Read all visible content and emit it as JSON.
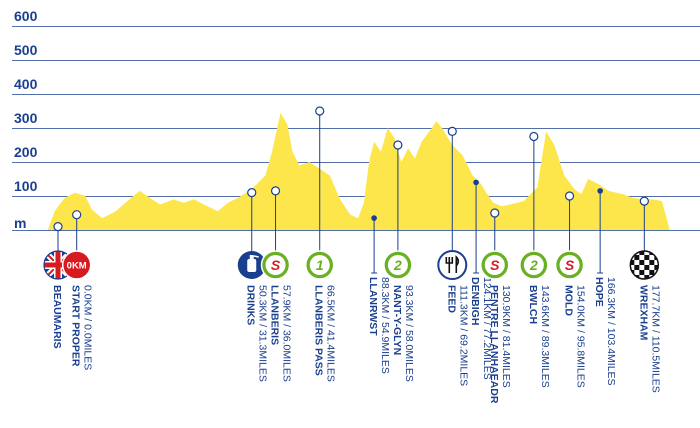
{
  "chart_data": {
    "type": "area",
    "ylabel": "m",
    "y_ticks": [
      100,
      200,
      300,
      400,
      500,
      600
    ],
    "x_range_km": [
      0,
      177.7
    ],
    "y_range_m": [
      0,
      600
    ],
    "colors": {
      "profile": "#fce64c",
      "text": "#1a3f8f",
      "grid": "#1a3f8f",
      "red": "#d71920",
      "green": "#6ab023",
      "navy": "#1a3f8f"
    },
    "profile": [
      [
        -3,
        0
      ],
      [
        -1,
        55
      ],
      [
        2,
        95
      ],
      [
        5,
        110
      ],
      [
        8,
        100
      ],
      [
        10,
        60
      ],
      [
        13,
        35
      ],
      [
        17,
        55
      ],
      [
        21,
        90
      ],
      [
        24,
        115
      ],
      [
        27,
        95
      ],
      [
        30,
        75
      ],
      [
        34,
        90
      ],
      [
        37,
        80
      ],
      [
        40,
        90
      ],
      [
        44,
        70
      ],
      [
        47,
        55
      ],
      [
        50,
        80
      ],
      [
        53,
        95
      ],
      [
        57,
        120
      ],
      [
        59,
        140
      ],
      [
        61,
        160
      ],
      [
        63,
        230
      ],
      [
        64.5,
        300
      ],
      [
        65.5,
        345
      ],
      [
        67.5,
        310
      ],
      [
        69,
        230
      ],
      [
        71,
        190
      ],
      [
        74,
        200
      ],
      [
        77,
        180
      ],
      [
        80,
        160
      ],
      [
        83,
        90
      ],
      [
        86,
        45
      ],
      [
        88.3,
        35
      ],
      [
        90,
        80
      ],
      [
        91.5,
        200
      ],
      [
        93,
        260
      ],
      [
        95,
        230
      ],
      [
        97,
        300
      ],
      [
        99,
        270
      ],
      [
        101,
        200
      ],
      [
        103,
        240
      ],
      [
        105,
        210
      ],
      [
        107,
        260
      ],
      [
        110,
        300
      ],
      [
        111.3,
        320
      ],
      [
        113,
        300
      ],
      [
        116,
        250
      ],
      [
        119,
        220
      ],
      [
        122,
        160
      ],
      [
        124.1,
        140
      ],
      [
        126,
        110
      ],
      [
        128,
        80
      ],
      [
        130.5,
        70
      ],
      [
        133,
        75
      ],
      [
        137,
        85
      ],
      [
        141,
        125
      ],
      [
        143.6,
        290
      ],
      [
        146,
        250
      ],
      [
        149,
        160
      ],
      [
        152,
        120
      ],
      [
        154,
        105
      ],
      [
        156,
        150
      ],
      [
        159,
        135
      ],
      [
        162,
        115
      ],
      [
        166.3,
        105
      ],
      [
        169,
        95
      ],
      [
        172,
        90
      ],
      [
        175,
        90
      ],
      [
        177.7,
        85
      ],
      [
        180,
        0
      ]
    ],
    "stations": [
      {
        "name": "BEAUMARIS",
        "distance": "",
        "km": 0,
        "icon": "uk-flag-icon",
        "badge": "",
        "marker_m": 10
      },
      {
        "name": "START PROPER",
        "distance": "0.0KM / 0.0MILES",
        "km": 5.5,
        "icon": "start-badge-icon",
        "badge": "0KM",
        "marker_m": 45
      },
      {
        "name": "DRINKS",
        "distance": "50.3KM / 31.3MILES",
        "km": 57,
        "icon": "drinks-bottle-icon",
        "badge": "",
        "marker_m": 110
      },
      {
        "name": "LLANBERIS",
        "distance": "57.9KM / 36.0MILES",
        "km": 64,
        "icon": "sprint-s-icon",
        "badge": "S",
        "marker_m": 115
      },
      {
        "name": "LLANBERIS PASS",
        "distance": "66.5KM / 41.4MILES",
        "km": 77,
        "icon": "climb-1-icon",
        "badge": "1",
        "marker_m": 350
      },
      {
        "name": "LLANRWST",
        "distance": "88.3KM / 54.9MILES",
        "km": 93,
        "icon": "",
        "badge": "",
        "marker_m": 35
      },
      {
        "name": "NANT-Y-GLYN",
        "distance": "93.3KM / 58.0MILES",
        "km": 100,
        "icon": "climb-2-icon",
        "badge": "2",
        "marker_m": 250
      },
      {
        "name": "FEED",
        "distance": "111.3KM / 69.2MILES",
        "km": 116,
        "icon": "feed-cutlery-icon",
        "badge": "",
        "marker_m": 290
      },
      {
        "name": "DENBIGH",
        "distance": "124.1KM / 77.2MILES",
        "km": 123,
        "icon": "",
        "badge": "",
        "marker_m": 140
      },
      {
        "name": "PENTRE LLANHAEADR",
        "distance": "130.9KM / 81.4MILES",
        "km": 128.5,
        "icon": "sprint-s-icon",
        "badge": "S",
        "marker_m": 50
      },
      {
        "name": "BWLCH",
        "distance": "143.6KM / 89.3MILES",
        "km": 140,
        "icon": "climb-2-icon",
        "badge": "2",
        "marker_m": 275
      },
      {
        "name": "MOLD",
        "distance": "154.0KM / 95.8MILES",
        "km": 150.5,
        "icon": "sprint-s-icon",
        "badge": "S",
        "marker_m": 100
      },
      {
        "name": "HOPE",
        "distance": "166.3KM / 103.4MILES",
        "km": 159.5,
        "icon": "",
        "badge": "",
        "marker_m": 115
      },
      {
        "name": "WREXHAM",
        "distance": "177.7KM / 110.5MILES",
        "km": 172.5,
        "icon": "finish-checkered-icon",
        "badge": "",
        "marker_m": 85
      }
    ]
  }
}
